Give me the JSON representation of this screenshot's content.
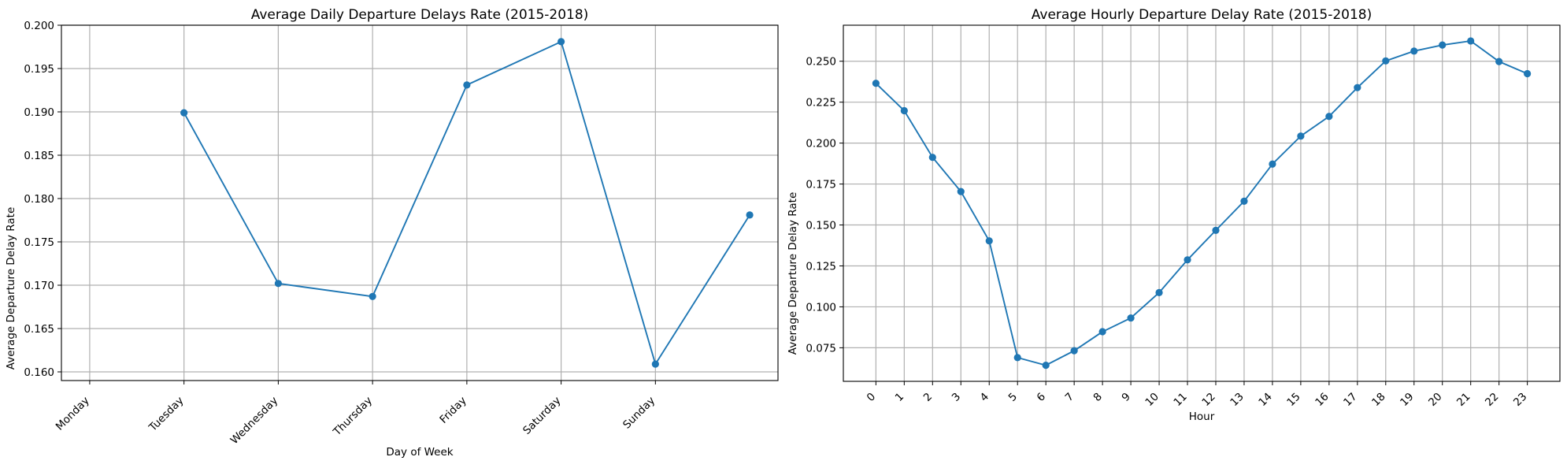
{
  "chart_data": [
    {
      "type": "line",
      "title": "Average Daily Departure Delays Rate (2015-2018)",
      "xlabel": "Day of Week",
      "ylabel": "Average Departure Delay Rate",
      "categories": [
        "Monday",
        "Tuesday",
        "Wednesday",
        "Thursday",
        "Friday",
        "Saturday",
        "Sunday"
      ],
      "x": [
        1,
        2,
        3,
        4,
        5,
        6,
        7
      ],
      "values": [
        0.1899,
        0.1702,
        0.1687,
        0.1931,
        0.1981,
        0.1609,
        0.1781
      ],
      "ylim": [
        0.159,
        0.2
      ],
      "yticks": [
        0.16,
        0.165,
        0.17,
        0.175,
        0.18,
        0.185,
        0.19,
        0.195,
        0.2
      ],
      "ytick_labels": [
        "0.160",
        "0.165",
        "0.170",
        "0.175",
        "0.180",
        "0.185",
        "0.190",
        "0.195",
        "0.200"
      ],
      "grid": true,
      "color": "#1f77b4"
    },
    {
      "type": "line",
      "title": "Average Hourly Departure Delay Rate (2015-2018)",
      "xlabel": "Hour",
      "ylabel": "Average Departure Delay Rate",
      "categories": [
        "0",
        "1",
        "2",
        "3",
        "4",
        "5",
        "6",
        "7",
        "8",
        "9",
        "10",
        "11",
        "12",
        "13",
        "14",
        "15",
        "16",
        "17",
        "18",
        "19",
        "20",
        "21",
        "22",
        "23"
      ],
      "values": [
        0.2365,
        0.2198,
        0.1913,
        0.1704,
        0.1403,
        0.069,
        0.0643,
        0.0732,
        0.0848,
        0.0932,
        0.1087,
        0.1287,
        0.1467,
        0.1645,
        0.1872,
        0.2043,
        0.2163,
        0.2339,
        0.2502,
        0.2562,
        0.2599,
        0.2624,
        0.2498,
        0.2424
      ],
      "ylim": [
        0.0545,
        0.272
      ],
      "yticks": [
        0.075,
        0.1,
        0.125,
        0.15,
        0.175,
        0.2,
        0.225,
        0.25
      ],
      "ytick_labels": [
        "0.075",
        "0.100",
        "0.125",
        "0.150",
        "0.175",
        "0.200",
        "0.225",
        "0.250"
      ],
      "grid": true,
      "color": "#1f77b4"
    }
  ]
}
